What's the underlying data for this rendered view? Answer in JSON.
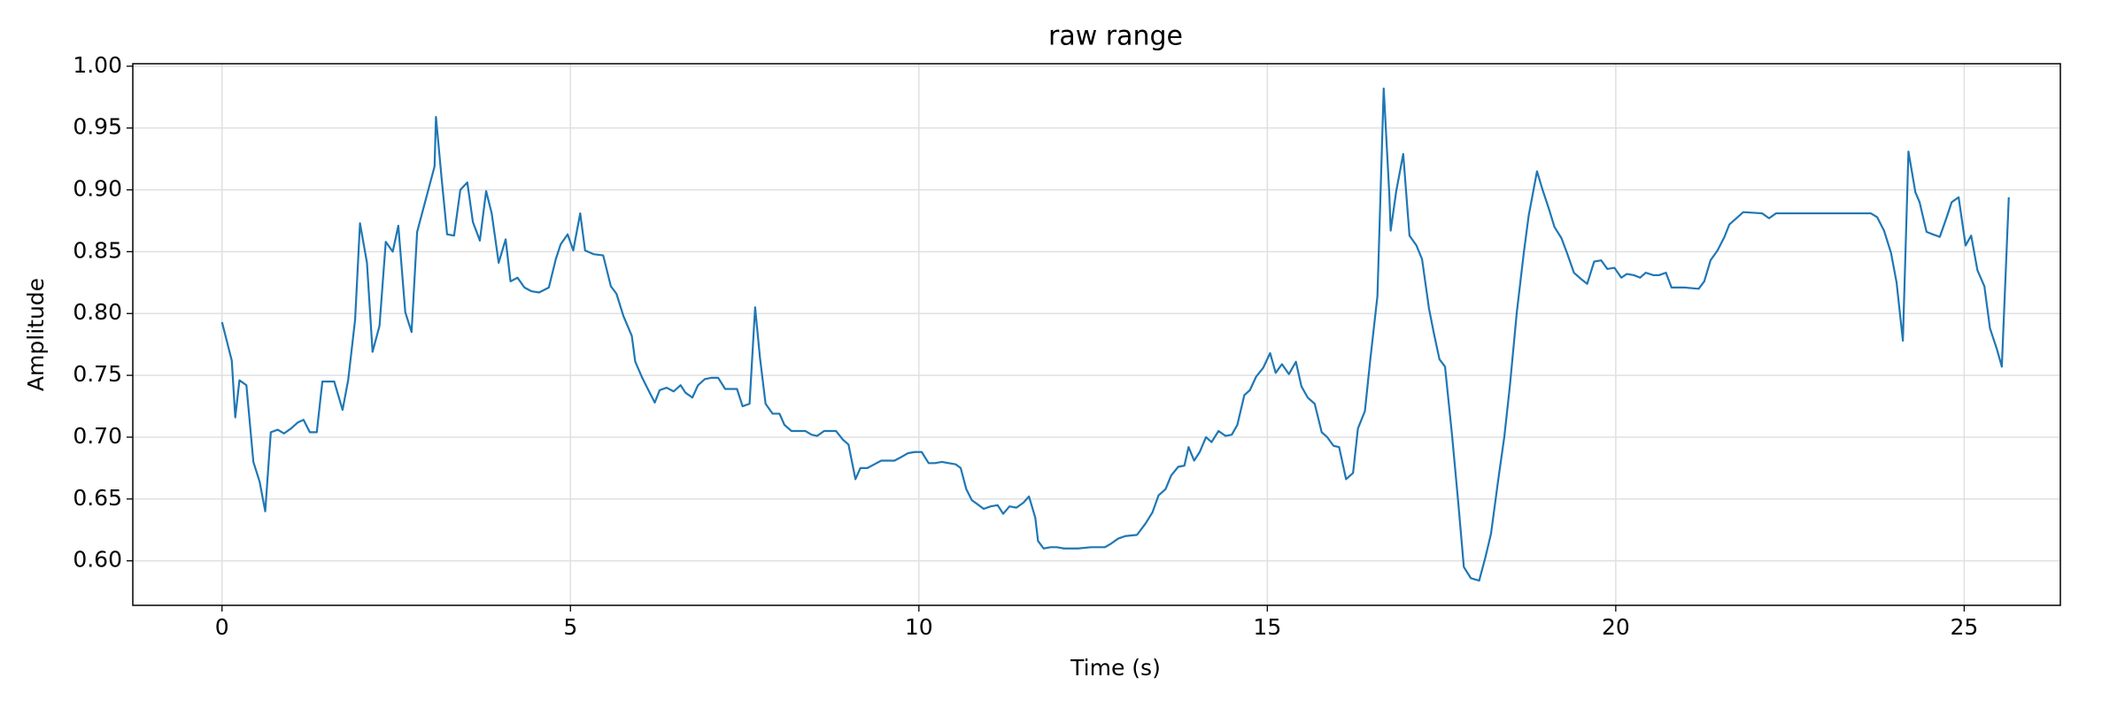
{
  "chart_data": {
    "type": "line",
    "title": "raw range",
    "x_label": "Time (s)",
    "y_label": "Amplitude",
    "xlim": [
      -1.28,
      26.38
    ],
    "ylim": [
      0.564,
      1.002
    ],
    "xticks": [
      0,
      5,
      10,
      15,
      20,
      25
    ],
    "yticks": [
      {
        "value": 0.6,
        "label": "0.60"
      },
      {
        "value": 0.65,
        "label": "0.65"
      },
      {
        "value": 0.7,
        "label": "0.70"
      },
      {
        "value": 0.75,
        "label": "0.75"
      },
      {
        "value": 0.8,
        "label": "0.80"
      },
      {
        "value": 0.85,
        "label": "0.85"
      },
      {
        "value": 0.9,
        "label": "0.90"
      },
      {
        "value": 0.95,
        "label": "0.95"
      },
      {
        "value": 1.0,
        "label": "1.00"
      }
    ],
    "grid": true,
    "x": [
      0,
      0.14,
      0.19,
      0.25,
      0.35,
      0.45,
      0.54,
      0.62,
      0.7,
      0.8,
      0.89,
      0.99,
      1.09,
      1.17,
      1.26,
      1.36,
      1.44,
      1.61,
      1.73,
      1.81,
      1.91,
      1.98,
      2.08,
      2.16,
      2.26,
      2.35,
      2.45,
      2.53,
      2.63,
      2.72,
      2.8,
      3.05,
      3.07,
      3.15,
      3.23,
      3.33,
      3.42,
      3.52,
      3.6,
      3.7,
      3.79,
      3.87,
      3.97,
      4.07,
      4.14,
      4.24,
      4.34,
      4.44,
      4.55,
      4.69,
      4.79,
      4.86,
      4.96,
      5.04,
      5.14,
      5.21,
      5.33,
      5.47,
      5.58,
      5.66,
      5.76,
      5.88,
      5.93,
      6.03,
      6.11,
      6.21,
      6.28,
      6.38,
      6.48,
      6.58,
      6.65,
      6.75,
      6.83,
      6.93,
      7.02,
      7.12,
      7.22,
      7.39,
      7.47,
      7.57,
      7.65,
      7.72,
      7.8,
      7.9,
      8.0,
      8.07,
      8.17,
      8.37,
      8.46,
      8.54,
      8.64,
      8.81,
      8.91,
      8.99,
      9.09,
      9.16,
      9.26,
      9.36,
      9.46,
      9.55,
      9.65,
      9.75,
      9.84,
      9.94,
      10.04,
      10.14,
      10.23,
      10.33,
      10.43,
      10.53,
      10.6,
      10.68,
      10.76,
      10.86,
      10.93,
      11.03,
      11.13,
      11.21,
      11.3,
      11.4,
      11.5,
      11.58,
      11.67,
      11.71,
      11.79,
      11.89,
      11.98,
      12.08,
      12.28,
      12.47,
      12.67,
      12.76,
      12.86,
      12.96,
      13.13,
      13.25,
      13.35,
      13.44,
      13.54,
      13.62,
      13.72,
      13.81,
      13.87,
      13.95,
      14.03,
      14.12,
      14.2,
      14.3,
      14.4,
      14.49,
      14.57,
      14.67,
      14.75,
      14.84,
      14.94,
      15.04,
      15.12,
      15.21,
      15.31,
      15.41,
      15.49,
      15.58,
      15.68,
      15.78,
      15.86,
      15.95,
      16.03,
      16.13,
      16.23,
      16.3,
      16.4,
      16.48,
      16.58,
      16.67,
      16.75,
      16.77,
      16.85,
      16.95,
      17.04,
      17.14,
      17.22,
      17.32,
      17.39,
      17.47,
      17.55,
      17.65,
      17.74,
      17.82,
      17.92,
      18.04,
      18.13,
      18.21,
      18.31,
      18.4,
      18.48,
      18.58,
      18.68,
      18.75,
      18.87,
      18.95,
      19.05,
      19.12,
      19.22,
      19.3,
      19.4,
      19.5,
      19.59,
      19.69,
      19.79,
      19.88,
      19.98,
      20.08,
      20.16,
      20.26,
      20.35,
      20.43,
      20.54,
      20.62,
      20.72,
      20.8,
      20.99,
      21.19,
      21.27,
      21.36,
      21.46,
      21.56,
      21.63,
      21.73,
      21.83,
      22.1,
      22.2,
      22.3,
      23.27,
      23.66,
      23.75,
      23.85,
      23.95,
      24.03,
      24.12,
      24.2,
      24.3,
      24.36,
      24.46,
      24.55,
      24.65,
      24.75,
      24.82,
      24.92,
      25.02,
      25.1,
      25.19,
      25.29,
      25.37,
      25.47,
      25.54,
      25.64
    ],
    "series": [
      {
        "name": "raw range",
        "color": "#1f77b4",
        "values": [
          0.793,
          0.762,
          0.716,
          0.746,
          0.742,
          0.68,
          0.664,
          0.64,
          0.704,
          0.706,
          0.703,
          0.707,
          0.712,
          0.714,
          0.704,
          0.704,
          0.745,
          0.745,
          0.722,
          0.746,
          0.795,
          0.873,
          0.841,
          0.769,
          0.79,
          0.858,
          0.85,
          0.871,
          0.801,
          0.785,
          0.866,
          0.919,
          0.959,
          0.91,
          0.864,
          0.863,
          0.9,
          0.906,
          0.874,
          0.859,
          0.899,
          0.881,
          0.841,
          0.86,
          0.826,
          0.829,
          0.821,
          0.818,
          0.817,
          0.821,
          0.844,
          0.856,
          0.864,
          0.851,
          0.881,
          0.851,
          0.848,
          0.847,
          0.822,
          0.816,
          0.798,
          0.782,
          0.761,
          0.748,
          0.739,
          0.728,
          0.738,
          0.74,
          0.737,
          0.742,
          0.736,
          0.732,
          0.742,
          0.747,
          0.748,
          0.748,
          0.739,
          0.739,
          0.725,
          0.727,
          0.805,
          0.764,
          0.727,
          0.719,
          0.719,
          0.71,
          0.705,
          0.705,
          0.702,
          0.701,
          0.705,
          0.705,
          0.698,
          0.694,
          0.666,
          0.675,
          0.675,
          0.678,
          0.681,
          0.681,
          0.681,
          0.684,
          0.687,
          0.688,
          0.688,
          0.679,
          0.679,
          0.68,
          0.679,
          0.678,
          0.675,
          0.658,
          0.649,
          0.645,
          0.642,
          0.644,
          0.645,
          0.638,
          0.644,
          0.643,
          0.647,
          0.652,
          0.635,
          0.616,
          0.61,
          0.611,
          0.611,
          0.61,
          0.61,
          0.611,
          0.611,
          0.614,
          0.618,
          0.62,
          0.621,
          0.63,
          0.639,
          0.653,
          0.658,
          0.669,
          0.676,
          0.677,
          0.692,
          0.681,
          0.688,
          0.7,
          0.696,
          0.705,
          0.701,
          0.702,
          0.71,
          0.734,
          0.738,
          0.749,
          0.756,
          0.768,
          0.752,
          0.759,
          0.751,
          0.761,
          0.741,
          0.732,
          0.727,
          0.704,
          0.7,
          0.693,
          0.692,
          0.666,
          0.671,
          0.707,
          0.721,
          0.764,
          0.814,
          0.982,
          0.897,
          0.867,
          0.899,
          0.929,
          0.863,
          0.855,
          0.844,
          0.804,
          0.784,
          0.763,
          0.757,
          0.702,
          0.647,
          0.595,
          0.586,
          0.584,
          0.603,
          0.622,
          0.664,
          0.7,
          0.741,
          0.801,
          0.849,
          0.879,
          0.915,
          0.9,
          0.883,
          0.87,
          0.861,
          0.849,
          0.833,
          0.828,
          0.824,
          0.842,
          0.843,
          0.836,
          0.837,
          0.829,
          0.832,
          0.831,
          0.829,
          0.833,
          0.831,
          0.831,
          0.833,
          0.821,
          0.821,
          0.82,
          0.826,
          0.843,
          0.851,
          0.862,
          0.872,
          0.877,
          0.882,
          0.881,
          0.877,
          0.881,
          0.881,
          0.881,
          0.878,
          0.867,
          0.849,
          0.825,
          0.778,
          0.931,
          0.898,
          0.89,
          0.866,
          0.864,
          0.862,
          0.878,
          0.89,
          0.894,
          0.855,
          0.863,
          0.835,
          0.822,
          0.788,
          0.771,
          0.757,
          0.894
        ]
      }
    ]
  }
}
